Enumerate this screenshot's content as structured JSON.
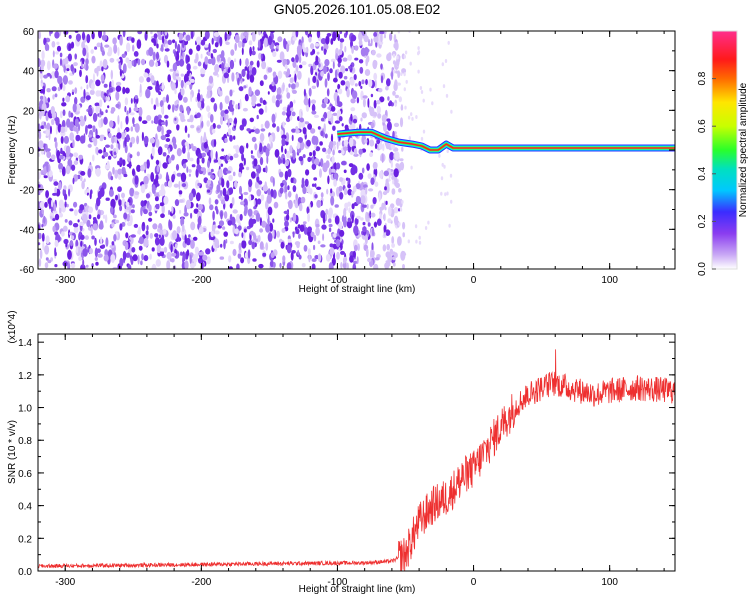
{
  "title": "GN05.2026.101.05.08.E02",
  "chart_data": [
    {
      "type": "heatmap",
      "name": "spectrogram",
      "xlabel": "Height of straight line (km)",
      "ylabel": "Frequency (Hz)",
      "xlim": [
        -320,
        148
      ],
      "ylim": [
        -60,
        60
      ],
      "xticks": [
        -300,
        -200,
        -100,
        0,
        100
      ],
      "yticks": [
        -60,
        -40,
        -20,
        0,
        20,
        40,
        60
      ],
      "noise_region_x": [
        -320,
        -60
      ],
      "tracked_line": {
        "x": [
          -100,
          -85,
          -75,
          -65,
          -55,
          -45,
          -38,
          -32,
          -26,
          -20,
          -15,
          0,
          50,
          100,
          148
        ],
        "y": [
          8,
          9,
          9,
          6,
          4,
          3,
          2,
          0,
          0,
          3,
          1,
          1,
          1,
          1,
          1
        ]
      },
      "colorbar": {
        "label": "Normalized spectral amplitude",
        "range": [
          0,
          1
        ],
        "ticks": [
          "0.0",
          "0.2",
          "0.4",
          "0.6",
          "0.8"
        ]
      }
    },
    {
      "type": "line",
      "name": "snr",
      "xlabel": "Height of straight line (km)",
      "ylabel": "SNR (10 * v/v)",
      "scale_label": "(x10^4)",
      "xlim": [
        -320,
        148
      ],
      "ylim": [
        0,
        1.45
      ],
      "xticks": [
        -300,
        -200,
        -100,
        0,
        100
      ],
      "yticks": [
        "0.0",
        "0.2",
        "0.4",
        "0.6",
        "0.8",
        "1.0",
        "1.2",
        "1.4"
      ],
      "color": "#ee3030",
      "series": [
        {
          "x": [
            -320,
            -250,
            -150,
            -80,
            -60,
            -50,
            -45,
            -40,
            -30,
            -20,
            -15,
            -10,
            -5,
            0,
            10,
            20,
            30,
            40,
            50,
            60,
            70,
            80,
            90,
            100,
            120,
            148
          ],
          "values": [
            0.03,
            0.035,
            0.045,
            0.05,
            0.06,
            0.1,
            0.2,
            0.3,
            0.4,
            0.45,
            0.5,
            0.55,
            0.6,
            0.62,
            0.75,
            0.88,
            1.0,
            1.08,
            1.12,
            1.15,
            1.12,
            1.1,
            1.08,
            1.1,
            1.12,
            1.1
          ]
        }
      ]
    }
  ]
}
